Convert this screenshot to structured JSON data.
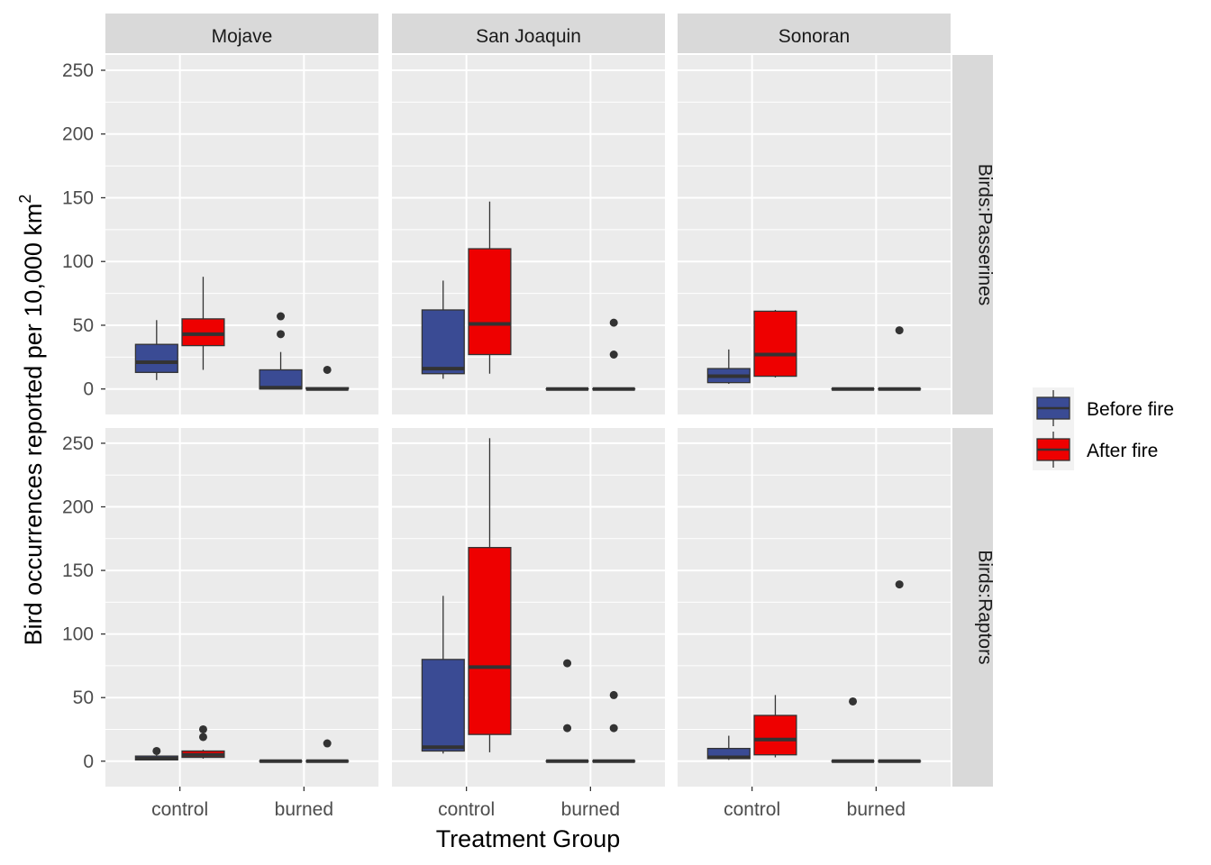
{
  "chart_data": {
    "type": "boxplot",
    "xlabel": "Treatment Group",
    "ylabel_main": "Bird occurrences reported per 10,000 km",
    "ylabel_sup": "2",
    "ylim": [
      -20,
      262
    ],
    "yticks": [
      0,
      50,
      100,
      150,
      200,
      250
    ],
    "categories": [
      "control",
      "burned"
    ],
    "columns": [
      "Mojave",
      "San Joaquin",
      "Sonoran"
    ],
    "rows": [
      "Birds:Passerines",
      "Birds:Raptors"
    ],
    "legend": {
      "position": "right",
      "items": [
        {
          "label": "Before fire",
          "color": "#3a4b94"
        },
        {
          "label": "After fire",
          "color": "#ee0000"
        }
      ]
    },
    "panels": [
      {
        "row": "Birds:Passerines",
        "column": "Mojave",
        "boxes": [
          {
            "category": "control",
            "series": "Before fire",
            "min": 7,
            "q1": 13,
            "median": 21,
            "q3": 35,
            "max": 54,
            "outliers": []
          },
          {
            "category": "control",
            "series": "After fire",
            "min": 15,
            "q1": 34,
            "median": 43,
            "q3": 55,
            "max": 88,
            "outliers": []
          },
          {
            "category": "burned",
            "series": "Before fire",
            "min": 0,
            "q1": 0,
            "median": 1,
            "q3": 15,
            "max": 29,
            "outliers": [
              43,
              57
            ]
          },
          {
            "category": "burned",
            "series": "After fire",
            "min": 0,
            "q1": 0,
            "median": 0,
            "q3": 1,
            "max": 1,
            "outliers": [
              15
            ]
          }
        ]
      },
      {
        "row": "Birds:Passerines",
        "column": "San Joaquin",
        "boxes": [
          {
            "category": "control",
            "series": "Before fire",
            "min": 8,
            "q1": 12,
            "median": 16,
            "q3": 62,
            "max": 85,
            "outliers": []
          },
          {
            "category": "control",
            "series": "After fire",
            "min": 12,
            "q1": 27,
            "median": 51,
            "q3": 110,
            "max": 147,
            "outliers": []
          },
          {
            "category": "burned",
            "series": "Before fire",
            "min": 0,
            "q1": 0,
            "median": 0,
            "q3": 0,
            "max": 0,
            "outliers": []
          },
          {
            "category": "burned",
            "series": "After fire",
            "min": 0,
            "q1": 0,
            "median": 0,
            "q3": 0,
            "max": 0,
            "outliers": [
              27,
              52
            ]
          }
        ]
      },
      {
        "row": "Birds:Passerines",
        "column": "Sonoran",
        "boxes": [
          {
            "category": "control",
            "series": "Before fire",
            "min": 4,
            "q1": 5,
            "median": 10,
            "q3": 16,
            "max": 31,
            "outliers": []
          },
          {
            "category": "control",
            "series": "After fire",
            "min": 9,
            "q1": 10,
            "median": 27,
            "q3": 61,
            "max": 62,
            "outliers": []
          },
          {
            "category": "burned",
            "series": "Before fire",
            "min": 0,
            "q1": 0,
            "median": 0,
            "q3": 0,
            "max": 0,
            "outliers": []
          },
          {
            "category": "burned",
            "series": "After fire",
            "min": 0,
            "q1": 0,
            "median": 0,
            "q3": 0,
            "max": 0,
            "outliers": [
              46
            ]
          }
        ]
      },
      {
        "row": "Birds:Raptors",
        "column": "Mojave",
        "boxes": [
          {
            "category": "control",
            "series": "Before fire",
            "min": 1,
            "q1": 1,
            "median": 2,
            "q3": 4,
            "max": 5,
            "outliers": [
              8
            ]
          },
          {
            "category": "control",
            "series": "After fire",
            "min": 2,
            "q1": 3,
            "median": 5,
            "q3": 8,
            "max": 9,
            "outliers": [
              19,
              25
            ]
          },
          {
            "category": "burned",
            "series": "Before fire",
            "min": 0,
            "q1": 0,
            "median": 0,
            "q3": 0,
            "max": 0,
            "outliers": []
          },
          {
            "category": "burned",
            "series": "After fire",
            "min": 0,
            "q1": 0,
            "median": 0,
            "q3": 0,
            "max": 0,
            "outliers": [
              14
            ]
          }
        ]
      },
      {
        "row": "Birds:Raptors",
        "column": "San Joaquin",
        "boxes": [
          {
            "category": "control",
            "series": "Before fire",
            "min": 6,
            "q1": 8,
            "median": 11,
            "q3": 80,
            "max": 130,
            "outliers": []
          },
          {
            "category": "control",
            "series": "After fire",
            "min": 7,
            "q1": 21,
            "median": 74,
            "q3": 168,
            "max": 254,
            "outliers": []
          },
          {
            "category": "burned",
            "series": "Before fire",
            "min": 0,
            "q1": 0,
            "median": 0,
            "q3": 0,
            "max": 0,
            "outliers": [
              26,
              77
            ]
          },
          {
            "category": "burned",
            "series": "After fire",
            "min": 0,
            "q1": 0,
            "median": 0,
            "q3": 0,
            "max": 0,
            "outliers": [
              26,
              52
            ]
          }
        ]
      },
      {
        "row": "Birds:Raptors",
        "column": "Sonoran",
        "boxes": [
          {
            "category": "control",
            "series": "Before fire",
            "min": 1,
            "q1": 2,
            "median": 3,
            "q3": 10,
            "max": 20,
            "outliers": []
          },
          {
            "category": "control",
            "series": "After fire",
            "min": 3,
            "q1": 5,
            "median": 17,
            "q3": 36,
            "max": 52,
            "outliers": []
          },
          {
            "category": "burned",
            "series": "Before fire",
            "min": 0,
            "q1": 0,
            "median": 0,
            "q3": 0,
            "max": 0,
            "outliers": [
              47
            ]
          },
          {
            "category": "burned",
            "series": "After fire",
            "min": 0,
            "q1": 0,
            "median": 0,
            "q3": 0,
            "max": 0,
            "outliers": [
              139
            ]
          }
        ]
      }
    ]
  }
}
